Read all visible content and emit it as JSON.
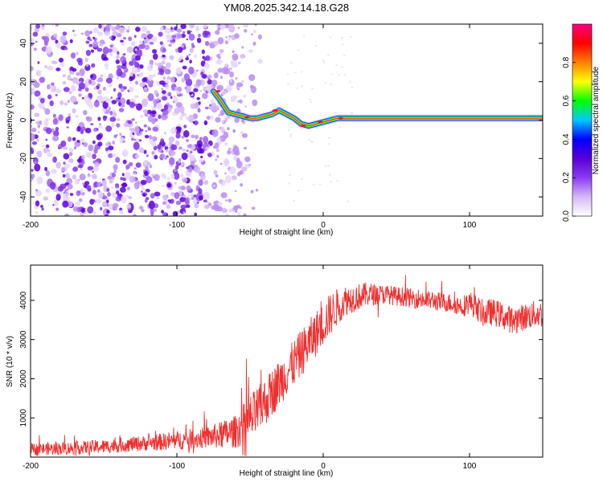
{
  "title": "YM08.2025.342.14.18.G28",
  "chart_data": [
    {
      "type": "heatmap",
      "name": "spectrogram",
      "title": "YM08.2025.342.14.18.G28",
      "xlabel": "Height of straight line (km)",
      "ylabel": "Frequency (Hz)",
      "xlim": [
        -200,
        150
      ],
      "ylim": [
        -50,
        50
      ],
      "xticks": [
        -200,
        -100,
        0,
        100
      ],
      "xtick_labels": [
        "-200",
        "-100",
        "0",
        "100"
      ],
      "yticks": [
        -40,
        -20,
        0,
        20,
        40
      ],
      "ytick_labels": [
        "-40",
        "-20",
        "0",
        "20",
        "40"
      ],
      "noise_region_x": [
        -200,
        -50
      ],
      "signal_trace": {
        "x": [
          -200,
          -180,
          -160,
          -140,
          -120,
          -100,
          -90,
          -80,
          -75,
          -70,
          -65,
          -60,
          -55,
          -50,
          -45,
          -40,
          -35,
          -30,
          -25,
          -20,
          -15,
          -10,
          -5,
          0,
          5,
          10,
          15,
          20,
          30,
          40,
          60,
          80,
          100,
          120,
          150
        ],
        "y": [
          null,
          null,
          null,
          null,
          null,
          null,
          null,
          null,
          15,
          10,
          4,
          3,
          2,
          1,
          1,
          2,
          3,
          5,
          3,
          1,
          -2,
          -3,
          -2,
          -1,
          0,
          1,
          1,
          1,
          1,
          1,
          1,
          1,
          1,
          1,
          1
        ]
      },
      "colorbar": {
        "label": "Normalized spectral amplitude",
        "range": [
          0,
          1
        ],
        "ticks": [
          0.0,
          0.2,
          0.4,
          0.6,
          0.8
        ],
        "tick_labels": [
          "0.0",
          "0.2",
          "0.4",
          "0.6",
          "0.8"
        ],
        "colormap": [
          "#ffffff",
          "#d6b8f5",
          "#8a3cf0",
          "#5a00d8",
          "#0000ff",
          "#00c8ff",
          "#00ff00",
          "#ffff00",
          "#ff8000",
          "#ff0000",
          "#ff0080"
        ]
      }
    },
    {
      "type": "line",
      "name": "snr",
      "xlabel": "Height of straight line (km)",
      "ylabel": "SNR (10 * v/v)",
      "xlim": [
        -200,
        150
      ],
      "ylim": [
        0,
        4900
      ],
      "xticks": [
        -200,
        -100,
        0,
        100
      ],
      "xtick_labels": [
        "-200",
        "-100",
        "0",
        "100"
      ],
      "yticks": [
        1000,
        2000,
        3000,
        4000
      ],
      "ytick_labels": [
        "1000",
        "2000",
        "3000",
        "4000"
      ],
      "color": "#f03030",
      "series": [
        {
          "name": "SNR",
          "x": [
            -200,
            -190,
            -180,
            -170,
            -160,
            -150,
            -140,
            -130,
            -120,
            -110,
            -100,
            -90,
            -80,
            -70,
            -60,
            -55,
            -50,
            -45,
            -40,
            -35,
            -30,
            -25,
            -20,
            -15,
            -10,
            -5,
            0,
            5,
            10,
            15,
            20,
            25,
            30,
            35,
            40,
            45,
            50,
            55,
            60,
            65,
            70,
            75,
            80,
            85,
            90,
            95,
            100,
            105,
            110,
            115,
            120,
            125,
            130,
            135,
            140,
            145,
            150
          ],
          "y": [
            200,
            210,
            220,
            230,
            250,
            270,
            300,
            330,
            360,
            390,
            420,
            460,
            500,
            560,
            650,
            800,
            950,
            1150,
            1400,
            1650,
            1900,
            2150,
            2400,
            2650,
            2900,
            3150,
            3400,
            3650,
            3850,
            4000,
            4050,
            4100,
            4150,
            4150,
            4150,
            4150,
            4100,
            4100,
            4050,
            4050,
            4000,
            4000,
            3950,
            3950,
            3900,
            3850,
            3950,
            3800,
            3650,
            3700,
            3650,
            3550,
            3500,
            3550,
            3600,
            3650,
            3650
          ]
        }
      ],
      "noise_amplitude": [
        [
          -200,
          150
        ],
        [
          -120,
          200
        ],
        [
          -80,
          280
        ],
        [
          -60,
          420
        ],
        [
          -50,
          650
        ],
        [
          -30,
          600
        ],
        [
          -10,
          600
        ],
        [
          5,
          550
        ],
        [
          15,
          400
        ],
        [
          40,
          250
        ],
        [
          90,
          250
        ],
        [
          110,
          350
        ],
        [
          150,
          350
        ]
      ]
    }
  ]
}
